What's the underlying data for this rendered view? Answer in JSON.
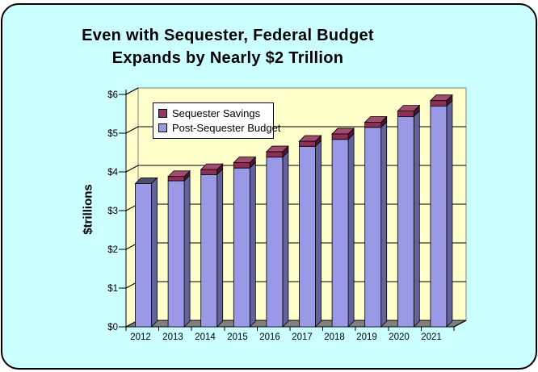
{
  "title": {
    "line1": "Even with Sequester, Federal Budget",
    "line2": "Expands by Nearly $2 Trillion"
  },
  "chart_data": {
    "type": "bar",
    "subtype": "3d-stacked-column",
    "title": "Even with Sequester, Federal Budget Expands by Nearly $2 Trillion",
    "xlabel": "",
    "ylabel": "$trillions",
    "ylim": [
      0,
      6
    ],
    "y_ticks": [
      "$0",
      "$1",
      "$2",
      "$3",
      "$4",
      "$5",
      "$6"
    ],
    "grid": true,
    "legend_position": "top-left-inside",
    "categories": [
      "2012",
      "2013",
      "2014",
      "2015",
      "2016",
      "2017",
      "2018",
      "2019",
      "2020",
      "2021"
    ],
    "series": [
      {
        "name": "Sequester Savings",
        "color": "#993366",
        "values": [
          0,
          0.11,
          0.13,
          0.14,
          0.14,
          0.13,
          0.14,
          0.13,
          0.14,
          0.14
        ]
      },
      {
        "name": "Post-Sequester Budget",
        "color": "#9999E6",
        "values": [
          3.7,
          3.77,
          3.93,
          4.1,
          4.38,
          4.66,
          4.84,
          5.15,
          5.43,
          5.7
        ]
      }
    ],
    "stack_order_bottom_to_top": [
      "Post-Sequester Budget",
      "Sequester Savings"
    ]
  },
  "palette": {
    "card_background": "#CCFFFF",
    "card_border": "#000000",
    "wall_fill": "#FFFFCC",
    "wall_border": "#808080",
    "floor_fill": "#808080",
    "gridline": "#000000",
    "axis_line": "#000000",
    "bar_front": "#9999E6",
    "bar_side": "#63639C",
    "bar_top_uncapped": "#4F4F6B",
    "cap_front": "#8E2D55",
    "cap_side": "#4A1630",
    "cap_top": "#A34A6E",
    "legend_background": "#FFFFFF",
    "text": "#000000"
  }
}
